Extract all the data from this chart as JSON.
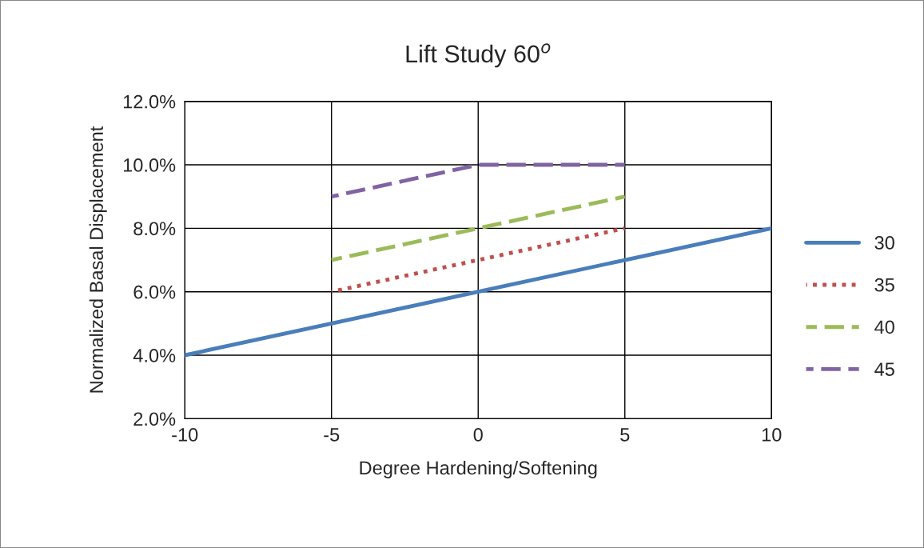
{
  "chart_data": {
    "type": "line",
    "title": "Lift Study 60$^{o}$",
    "xlabel": "Degree Hardening/Softening",
    "ylabel": "Normalized Basal Displacement",
    "xlim": [
      -10,
      10
    ],
    "xticks": [
      -10,
      -5,
      0,
      5,
      10
    ],
    "ylim": [
      0.02,
      0.12
    ],
    "yticks": [
      {
        "value": 0.02,
        "label": "2.0%"
      },
      {
        "value": 0.04,
        "label": "4.0%"
      },
      {
        "value": 0.06,
        "label": "6.0%"
      },
      {
        "value": 0.08,
        "label": "8.0%"
      },
      {
        "value": 0.1,
        "label": "10.0%"
      },
      {
        "value": 0.12,
        "label": "12.0%"
      }
    ],
    "grid": true,
    "legend": "right",
    "series": [
      {
        "name": "30",
        "color": "#4a7ebb",
        "line_style": "solid",
        "x": [
          -10,
          -5,
          0,
          5,
          10
        ],
        "values": [
          0.04,
          0.05,
          0.06,
          0.07,
          0.08
        ]
      },
      {
        "name": "35",
        "color": "#c0504d",
        "line_style": "dotted",
        "x": [
          -5,
          0,
          5
        ],
        "values": [
          0.06,
          0.07,
          0.08
        ]
      },
      {
        "name": "40",
        "color": "#9bbb59",
        "line_style": "dashed",
        "x": [
          -5,
          0,
          5
        ],
        "values": [
          0.07,
          0.08,
          0.09
        ]
      },
      {
        "name": "45",
        "color": "#8064a2",
        "line_style": "dashed",
        "x": [
          -5,
          0,
          5
        ],
        "values": [
          0.09,
          0.1,
          0.1
        ]
      }
    ]
  }
}
